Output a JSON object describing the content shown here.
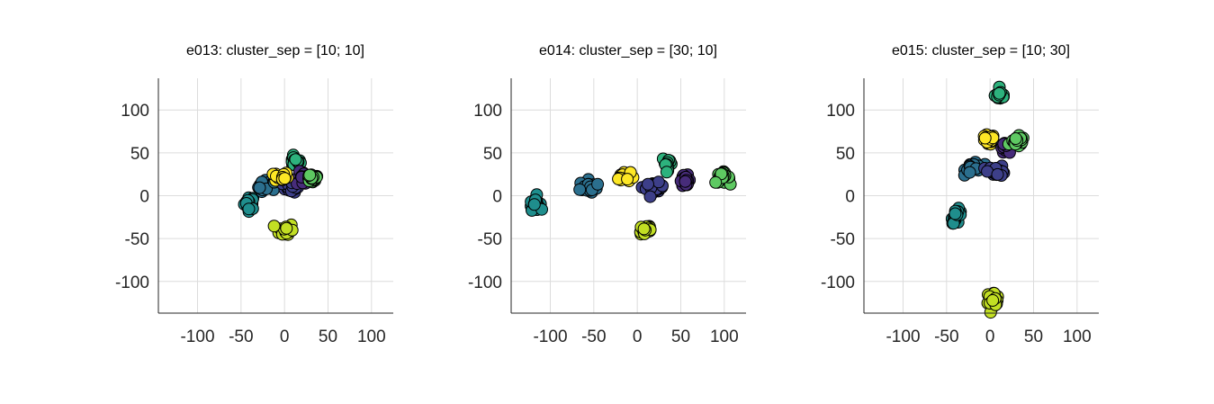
{
  "chart_data": [
    {
      "type": "scatter",
      "title": "e013: cluster_sep = [10; 10]",
      "xlim": [
        -145,
        125
      ],
      "ylim": [
        -137,
        137
      ],
      "xticks": [
        -100,
        -50,
        0,
        50,
        100
      ],
      "yticks": [
        -100,
        -50,
        0,
        50,
        100
      ],
      "xtick_labels": [
        "-100",
        "-50",
        "0",
        "50",
        "100"
      ],
      "ytick_labels": [
        "-100",
        "-50",
        "0",
        "50",
        "100"
      ],
      "grid": true,
      "clusters": [
        {
          "center": [
            -40,
            -8
          ],
          "color": "#1f8e8d",
          "spread": [
            3,
            4
          ]
        },
        {
          "center": [
            -20,
            10
          ],
          "color": "#2b6f8e",
          "spread": [
            5,
            4
          ]
        },
        {
          "center": [
            8,
            10
          ],
          "color": "#3d3f89",
          "spread": [
            5,
            3
          ]
        },
        {
          "center": [
            12,
            40
          ],
          "color": "#2db27d",
          "spread": [
            3,
            3
          ]
        },
        {
          "center": [
            22,
            20
          ],
          "color": "#472c7a",
          "spread": [
            4,
            4
          ]
        },
        {
          "center": [
            -4,
            22
          ],
          "color": "#fde725",
          "spread": [
            4,
            3
          ]
        },
        {
          "center": [
            32,
            21
          ],
          "color": "#5ec962",
          "spread": [
            4,
            3
          ]
        },
        {
          "center": [
            2,
            -40
          ],
          "color": "#c2df23",
          "spread": [
            4,
            4
          ]
        }
      ]
    },
    {
      "type": "scatter",
      "title": "e014: cluster_sep = [30; 10]",
      "xlim": [
        -145,
        125
      ],
      "ylim": [
        -137,
        137
      ],
      "xticks": [
        -100,
        -50,
        0,
        50,
        100
      ],
      "yticks": [
        -100,
        -50,
        0,
        50,
        100
      ],
      "xtick_labels": [
        "-100",
        "-50",
        "0",
        "50",
        "100"
      ],
      "ytick_labels": [
        "-100",
        "-50",
        "0",
        "50",
        "100"
      ],
      "grid": true,
      "clusters": [
        {
          "center": [
            -118,
            -8
          ],
          "color": "#1f8e8d",
          "spread": [
            3,
            4
          ]
        },
        {
          "center": [
            -56,
            10
          ],
          "color": "#2b6f8e",
          "spread": [
            5,
            4
          ]
        },
        {
          "center": [
            -16,
            22
          ],
          "color": "#fde725",
          "spread": [
            4,
            3
          ]
        },
        {
          "center": [
            20,
            9
          ],
          "color": "#3d3f89",
          "spread": [
            5,
            3
          ]
        },
        {
          "center": [
            35,
            38
          ],
          "color": "#2db27d",
          "spread": [
            3,
            4
          ]
        },
        {
          "center": [
            55,
            18
          ],
          "color": "#472c7a",
          "spread": [
            3,
            3
          ]
        },
        {
          "center": [
            98,
            21
          ],
          "color": "#5ec962",
          "spread": [
            4,
            3
          ]
        },
        {
          "center": [
            10,
            -40
          ],
          "color": "#c2df23",
          "spread": [
            4,
            4
          ]
        }
      ]
    },
    {
      "type": "scatter",
      "title": "e015: cluster_sep = [10; 30]",
      "xlim": [
        -145,
        125
      ],
      "ylim": [
        -137,
        137
      ],
      "xticks": [
        -100,
        -50,
        0,
        50,
        100
      ],
      "yticks": [
        -100,
        -50,
        0,
        50,
        100
      ],
      "xtick_labels": [
        "-100",
        "-50",
        "0",
        "50",
        "100"
      ],
      "ytick_labels": [
        "-100",
        "-50",
        "0",
        "50",
        "100"
      ],
      "grid": true,
      "clusters": [
        {
          "center": [
            12,
            117
          ],
          "color": "#2db27d",
          "spread": [
            3,
            3
          ]
        },
        {
          "center": [
            -3,
            65
          ],
          "color": "#fde725",
          "spread": [
            4,
            3
          ]
        },
        {
          "center": [
            18,
            55
          ],
          "color": "#472c7a",
          "spread": [
            3,
            3
          ]
        },
        {
          "center": [
            32,
            63
          ],
          "color": "#5ec962",
          "spread": [
            4,
            3
          ]
        },
        {
          "center": [
            -18,
            34
          ],
          "color": "#2b6f8e",
          "spread": [
            5,
            4
          ]
        },
        {
          "center": [
            8,
            29
          ],
          "color": "#3d3f89",
          "spread": [
            5,
            3
          ]
        },
        {
          "center": [
            -38,
            -24
          ],
          "color": "#1f8e8d",
          "spread": [
            3,
            4
          ]
        },
        {
          "center": [
            3,
            -120
          ],
          "color": "#c2df23",
          "spread": [
            4,
            4
          ]
        }
      ]
    }
  ]
}
